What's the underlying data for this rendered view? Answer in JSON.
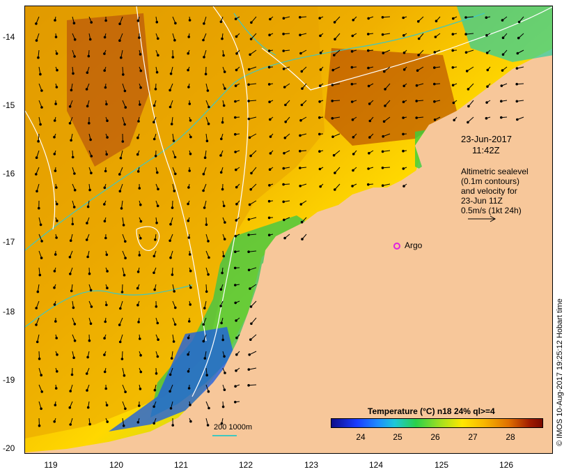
{
  "map": {
    "date_label": "23-Jun-2017",
    "time_label": "11:42Z",
    "altimetry_lines": [
      "Altimetric sealevel",
      "(0.1m contours)",
      "and velocity for",
      "23-Jun 11Z",
      "0.5m/s (1kt 24h)"
    ],
    "argo_label": "Argo",
    "credit": "© IMOS 10-Aug-2017 19:25:12 Hobart time",
    "depth_scale_label": "200  1000m"
  },
  "axes": {
    "x_ticks": [
      "119",
      "120",
      "121",
      "122",
      "123",
      "124",
      "125",
      "126"
    ],
    "y_ticks": [
      "-14",
      "-15",
      "-16",
      "-17",
      "-18",
      "-19",
      "-20"
    ],
    "xlim": [
      118.65,
      126.7
    ],
    "ylim": [
      -20.05,
      -13.55
    ]
  },
  "colorbar": {
    "title": "Temperature (°C) n18 24% ql>=4",
    "ticks": [
      "24",
      "25",
      "26",
      "27",
      "28"
    ],
    "range": [
      23.2,
      28.8
    ]
  },
  "chart_data": {
    "type": "heatmap",
    "title": "Temperature (°C) n18 24% ql>=4",
    "xlabel": "",
    "ylabel": "",
    "x_ticks": [
      119,
      120,
      121,
      122,
      123,
      124,
      125,
      126
    ],
    "y_ticks": [
      -14,
      -15,
      -16,
      -17,
      -18,
      -19,
      -20
    ],
    "colorbar_ticks": [
      24,
      25,
      26,
      27,
      28
    ],
    "velocity_reference": "0.5m/s (1kt 24h)",
    "argo_position": {
      "lon": 124.3,
      "lat": -17.03
    }
  },
  "colors": {
    "land": "#f7c79a",
    "contour_200m": "#40c8c0",
    "contour_sealevel": "#ffffff",
    "argo_marker": "#e020e0"
  }
}
